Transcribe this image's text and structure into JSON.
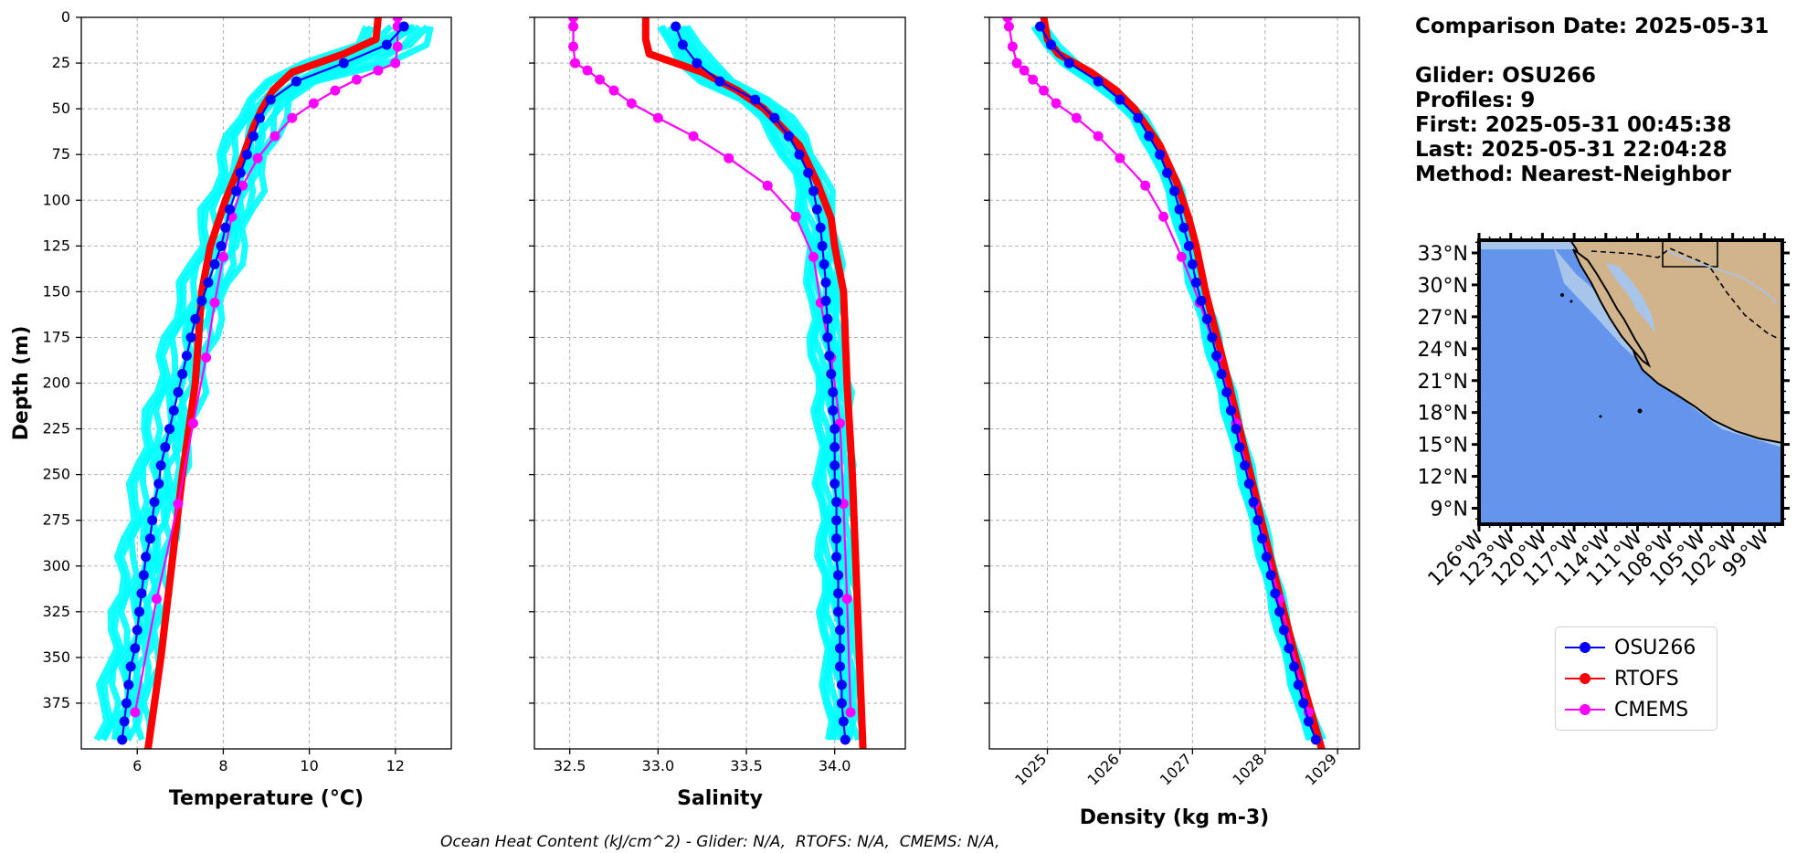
{
  "chart_data": [
    {
      "type": "line",
      "panel": "temperature",
      "xlabel": "Temperature (°C)",
      "ylabel": "Depth (m)",
      "xlim": [
        4.7,
        13.3
      ],
      "ylim": [
        400,
        0
      ],
      "xticks": [
        6,
        8,
        10,
        12
      ],
      "yticks": [
        0,
        25,
        50,
        75,
        100,
        125,
        150,
        175,
        200,
        225,
        250,
        275,
        300,
        325,
        350,
        375
      ],
      "grid": true,
      "series": [
        {
          "name": "OSU266",
          "color": "#0000ff",
          "depth": [
            5,
            15,
            25,
            35,
            45,
            55,
            65,
            75,
            85,
            95,
            105,
            115,
            125,
            135,
            145,
            155,
            165,
            175,
            185,
            195,
            205,
            215,
            225,
            235,
            245,
            255,
            265,
            275,
            285,
            295,
            305,
            315,
            325,
            335,
            345,
            355,
            365,
            375,
            385,
            395
          ],
          "values": [
            12.2,
            11.8,
            10.8,
            9.7,
            9.1,
            8.85,
            8.7,
            8.55,
            8.4,
            8.3,
            8.15,
            8.05,
            7.95,
            7.8,
            7.65,
            7.5,
            7.35,
            7.25,
            7.15,
            7.05,
            6.95,
            6.85,
            6.75,
            6.65,
            6.55,
            6.5,
            6.4,
            6.35,
            6.3,
            6.2,
            6.15,
            6.1,
            6.05,
            6.0,
            5.95,
            5.85,
            5.8,
            5.75,
            5.7,
            5.65
          ]
        },
        {
          "name": "RTOFS",
          "color": "#ff0000",
          "depth": [
            0,
            12,
            20,
            30,
            40,
            50,
            60,
            80,
            100,
            125,
            150,
            200,
            250,
            300,
            350,
            400
          ],
          "values": [
            11.6,
            11.55,
            10.8,
            9.6,
            9.15,
            8.9,
            8.7,
            8.4,
            8.05,
            7.7,
            7.5,
            7.35,
            7.05,
            6.8,
            6.55,
            6.25
          ]
        },
        {
          "name": "CMEMS",
          "color": "#ff00ff",
          "depth": [
            0,
            5,
            16,
            25,
            29,
            34,
            40,
            47,
            55,
            65,
            77,
            92,
            109,
            131,
            156,
            186,
            222,
            266,
            318,
            380
          ],
          "values": [
            12.05,
            12.05,
            12.05,
            12.0,
            11.6,
            11.1,
            10.6,
            10.1,
            9.6,
            9.2,
            8.8,
            8.45,
            8.2,
            8.0,
            7.8,
            7.6,
            7.3,
            6.95,
            6.45,
            5.95
          ]
        }
      ]
    },
    {
      "type": "line",
      "panel": "salinity",
      "xlabel": "Salinity",
      "xlim": [
        32.3,
        34.4
      ],
      "ylim": [
        400,
        0
      ],
      "xticks": [
        32.5,
        33.0,
        33.5,
        34.0
      ],
      "grid": true,
      "series": [
        {
          "name": "OSU266",
          "color": "#0000ff",
          "depth": [
            5,
            15,
            25,
            35,
            45,
            55,
            65,
            75,
            85,
            95,
            105,
            115,
            125,
            135,
            145,
            155,
            165,
            175,
            185,
            195,
            205,
            215,
            225,
            235,
            245,
            255,
            265,
            275,
            285,
            295,
            305,
            315,
            325,
            335,
            345,
            355,
            365,
            375,
            385,
            395
          ],
          "values": [
            33.1,
            33.14,
            33.22,
            33.35,
            33.55,
            33.66,
            33.74,
            33.8,
            33.85,
            33.88,
            33.9,
            33.92,
            33.93,
            33.94,
            33.95,
            33.95,
            33.96,
            33.96,
            33.97,
            33.98,
            33.99,
            33.99,
            34.0,
            34.0,
            34.0,
            34.0,
            34.01,
            34.01,
            34.01,
            34.01,
            34.02,
            34.02,
            34.02,
            34.03,
            34.03,
            34.03,
            34.04,
            34.04,
            34.05,
            34.06
          ]
        },
        {
          "name": "RTOFS",
          "color": "#ff0000",
          "depth": [
            0,
            12,
            20,
            30,
            40,
            50,
            70,
            90,
            110,
            125,
            150,
            200,
            250,
            300,
            350,
            400
          ],
          "values": [
            32.93,
            32.93,
            32.95,
            33.25,
            33.45,
            33.6,
            33.8,
            33.9,
            33.98,
            34.0,
            34.05,
            34.07,
            34.1,
            34.12,
            34.14,
            34.16
          ]
        },
        {
          "name": "CMEMS",
          "color": "#ff00ff",
          "depth": [
            0,
            5,
            16,
            25,
            29,
            34,
            40,
            47,
            55,
            65,
            77,
            92,
            109,
            131,
            156,
            186,
            222,
            266,
            318,
            380
          ],
          "values": [
            32.52,
            32.52,
            32.52,
            32.53,
            32.6,
            32.67,
            32.75,
            32.85,
            33.0,
            33.2,
            33.4,
            33.62,
            33.78,
            33.88,
            33.92,
            33.98,
            34.03,
            34.05,
            34.07,
            34.09
          ]
        }
      ]
    },
    {
      "type": "line",
      "panel": "density",
      "xlabel": "Density (kg m-3)",
      "xlim": [
        1024.2,
        1029.3
      ],
      "ylim": [
        400,
        0
      ],
      "xticks": [
        1025,
        1026,
        1027,
        1028,
        1029
      ],
      "grid": true,
      "series": [
        {
          "name": "OSU266",
          "color": "#0000ff",
          "depth": [
            5,
            15,
            25,
            35,
            45,
            55,
            65,
            75,
            85,
            95,
            105,
            115,
            125,
            135,
            145,
            155,
            165,
            175,
            185,
            195,
            205,
            215,
            225,
            235,
            245,
            255,
            265,
            275,
            285,
            295,
            305,
            315,
            325,
            335,
            345,
            355,
            365,
            375,
            385,
            395
          ],
          "values": [
            1024.9,
            1025.05,
            1025.3,
            1025.7,
            1026.0,
            1026.25,
            1026.4,
            1026.55,
            1026.65,
            1026.75,
            1026.82,
            1026.88,
            1026.95,
            1027.0,
            1027.05,
            1027.12,
            1027.2,
            1027.27,
            1027.33,
            1027.4,
            1027.47,
            1027.53,
            1027.6,
            1027.65,
            1027.72,
            1027.78,
            1027.84,
            1027.9,
            1027.96,
            1028.02,
            1028.08,
            1028.14,
            1028.2,
            1028.26,
            1028.33,
            1028.4,
            1028.46,
            1028.53,
            1028.6,
            1028.7
          ]
        },
        {
          "name": "RTOFS",
          "color": "#ff0000",
          "depth": [
            0,
            12,
            20,
            30,
            40,
            50,
            70,
            90,
            110,
            125,
            150,
            200,
            250,
            300,
            350,
            400
          ],
          "values": [
            1024.95,
            1025.0,
            1025.15,
            1025.6,
            1025.95,
            1026.2,
            1026.55,
            1026.78,
            1026.95,
            1027.05,
            1027.18,
            1027.5,
            1027.8,
            1028.1,
            1028.42,
            1028.78
          ]
        },
        {
          "name": "CMEMS",
          "color": "#ff00ff",
          "depth": [
            0,
            5,
            16,
            25,
            29,
            34,
            40,
            47,
            55,
            65,
            77,
            92,
            109,
            131,
            156,
            186,
            222,
            266,
            318,
            380
          ],
          "values": [
            1024.45,
            1024.47,
            1024.52,
            1024.58,
            1024.68,
            1024.8,
            1024.95,
            1025.12,
            1025.4,
            1025.7,
            1026.0,
            1026.35,
            1026.6,
            1026.85,
            1027.1,
            1027.35,
            1027.6,
            1027.85,
            1028.2,
            1028.6
          ]
        }
      ]
    }
  ],
  "info": {
    "comparison": "Comparison Date: 2025-05-31",
    "glider": "Glider: OSU266",
    "profiles": "Profiles: 9",
    "first": "First: 2025-05-31 00:45:38",
    "last": "Last: 2025-05-31 22:04:28",
    "method": "Method: Nearest-Neighbor"
  },
  "map": {
    "lat_labels": [
      "33°N",
      "30°N",
      "27°N",
      "24°N",
      "21°N",
      "18°N",
      "15°N",
      "12°N",
      "9°N"
    ],
    "lon_labels": [
      "126°W",
      "123°W",
      "120°W",
      "117°W",
      "114°W",
      "111°W",
      "108°W",
      "105°W",
      "102°W",
      "99°W"
    ],
    "ocean_color": "#6495ed",
    "land_color": "#d2b48c",
    "shelf_color": "#a7c4ea"
  },
  "legend": {
    "entries": [
      {
        "label": "OSU266",
        "color": "#0000ff"
      },
      {
        "label": "RTOFS",
        "color": "#ff0000"
      },
      {
        "label": "CMEMS",
        "color": "#ff00ff"
      }
    ]
  },
  "footer": "Ocean Heat Content (kJ/cm^2) - Glider: N/A,  RTOFS: N/A,  CMEMS: N/A,"
}
